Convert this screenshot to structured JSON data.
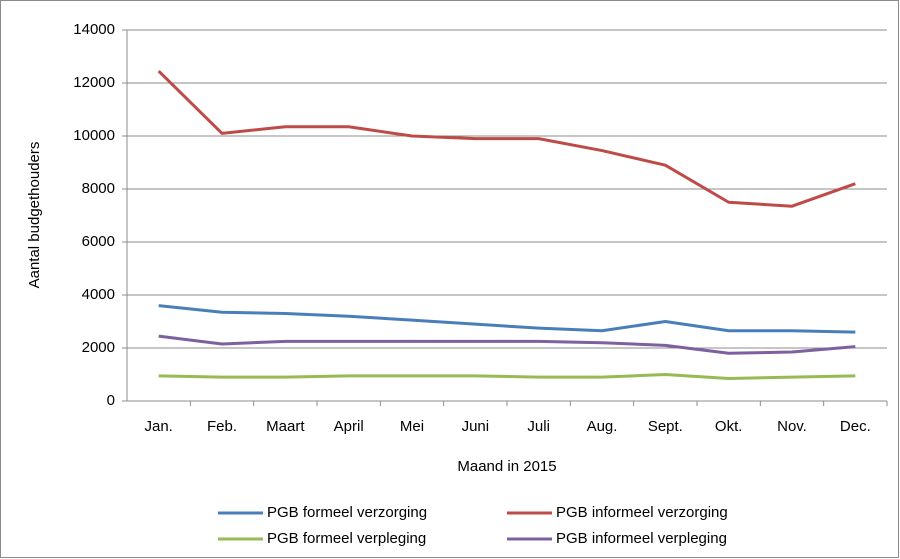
{
  "chart_data": {
    "type": "line",
    "x_label": "Maand in 2015",
    "y_label": "Aantal budgethouders",
    "categories": [
      "Jan.",
      "Feb.",
      "Maart",
      "April",
      "Mei",
      "Juni",
      "Juli",
      "Aug.",
      "Sept.",
      "Okt.",
      "Nov.",
      "Dec."
    ],
    "series": [
      {
        "name": "PGB formeel verzorging",
        "color": "#4a7ebb",
        "values": [
          3600,
          3350,
          3300,
          3200,
          3050,
          2900,
          2750,
          2650,
          3000,
          2650,
          2650,
          2600
        ]
      },
      {
        "name": "PGB informeel verzorging",
        "color": "#be4b48",
        "values": [
          12450,
          10100,
          10350,
          10350,
          10000,
          9900,
          9900,
          9450,
          8900,
          7500,
          7350,
          8200
        ]
      },
      {
        "name": "PGB formeel verpleging",
        "color": "#98b954",
        "values": [
          950,
          900,
          900,
          950,
          950,
          950,
          900,
          900,
          1000,
          850,
          900,
          950
        ]
      },
      {
        "name": "PGB informeel verpleging",
        "color": "#7d60a0",
        "values": [
          2450,
          2150,
          2250,
          2250,
          2250,
          2250,
          2250,
          2200,
          2100,
          1800,
          1850,
          2050
        ]
      }
    ],
    "ylim": [
      0,
      14000
    ],
    "yticks": [
      0,
      2000,
      4000,
      6000,
      8000,
      10000,
      12000,
      14000
    ],
    "grid": true
  }
}
